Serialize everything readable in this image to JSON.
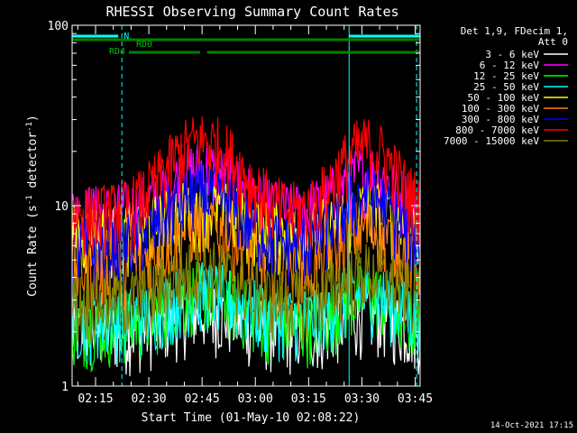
{
  "chart_data": {
    "type": "line",
    "title": "RHESSI Observing Summary Count Rates",
    "xlabel": "Start Time (01-May-10 02:08:22)",
    "ylabel_main": "Count Rate (s",
    "ylabel_exp1": "-1",
    "ylabel_mid": " detector",
    "ylabel_exp2": "-1",
    "ylabel_end": ")",
    "y_scale": "log",
    "ylim": [
      1,
      100
    ],
    "y_ticks": [
      "100",
      "10",
      "1"
    ],
    "x_range_minutes": [
      0,
      98
    ],
    "x_ticks": [
      {
        "label": "02:15",
        "min": 6.6
      },
      {
        "label": "02:30",
        "min": 21.6
      },
      {
        "label": "02:45",
        "min": 36.6
      },
      {
        "label": "03:00",
        "min": 51.6
      },
      {
        "label": "03:15",
        "min": 66.6
      },
      {
        "label": "03:30",
        "min": 81.6
      },
      {
        "label": "03:45",
        "min": 96.6
      }
    ],
    "legend": {
      "header1": "Det 1,9, FDecim 1,",
      "header2": "Att 0",
      "placement": "top-right"
    },
    "series": [
      {
        "name": "3 - 6 keV",
        "color": "#ffffff",
        "base": 2.0,
        "peak": 0.6
      },
      {
        "name": "6 - 12 keV",
        "color": "#ff00ff",
        "base": 9.0,
        "peak": 7.0
      },
      {
        "name": "12 - 25 keV",
        "color": "#00ff00",
        "base": 2.2,
        "peak": 1.2
      },
      {
        "name": "25 - 50 keV",
        "color": "#00ffff",
        "base": 2.4,
        "peak": 1.0
      },
      {
        "name": "50 - 100 keV",
        "color": "#ffff00",
        "base": 7.0,
        "peak": 3.0
      },
      {
        "name": "100 - 300 keV",
        "color": "#ff8000",
        "base": 4.5,
        "peak": 3.5
      },
      {
        "name": "300 - 800 keV",
        "color": "#0000ff",
        "base": 6.0,
        "peak": 6.0
      },
      {
        "name": "800 - 7000 keV",
        "color": "#ff0000",
        "base": 9.0,
        "peak": 14.0
      },
      {
        "name": "7000 - 15000 keV",
        "color": "#808000",
        "base": 3.0,
        "peak": 1.5
      }
    ],
    "flags": {
      "N_label": "N",
      "RD0_label": "RD0",
      "RD4_label": "RD4",
      "N_segments_min": [
        [
          0,
          13
        ],
        [
          78,
          98
        ]
      ],
      "RD0_segment_min": [
        0,
        98
      ],
      "RD4_segments_min": [
        [
          16,
          36
        ],
        [
          38,
          98
        ]
      ],
      "N_color": "#00ffff",
      "RD_color": "#008000"
    },
    "event_lines_min": [
      {
        "min": 0,
        "style": "solid"
      },
      {
        "min": 14,
        "style": "dashed"
      },
      {
        "min": 78,
        "style": "solid"
      },
      {
        "min": 97,
        "style": "dashed"
      }
    ]
  },
  "timestamp": "14-Oct-2021 17:15"
}
